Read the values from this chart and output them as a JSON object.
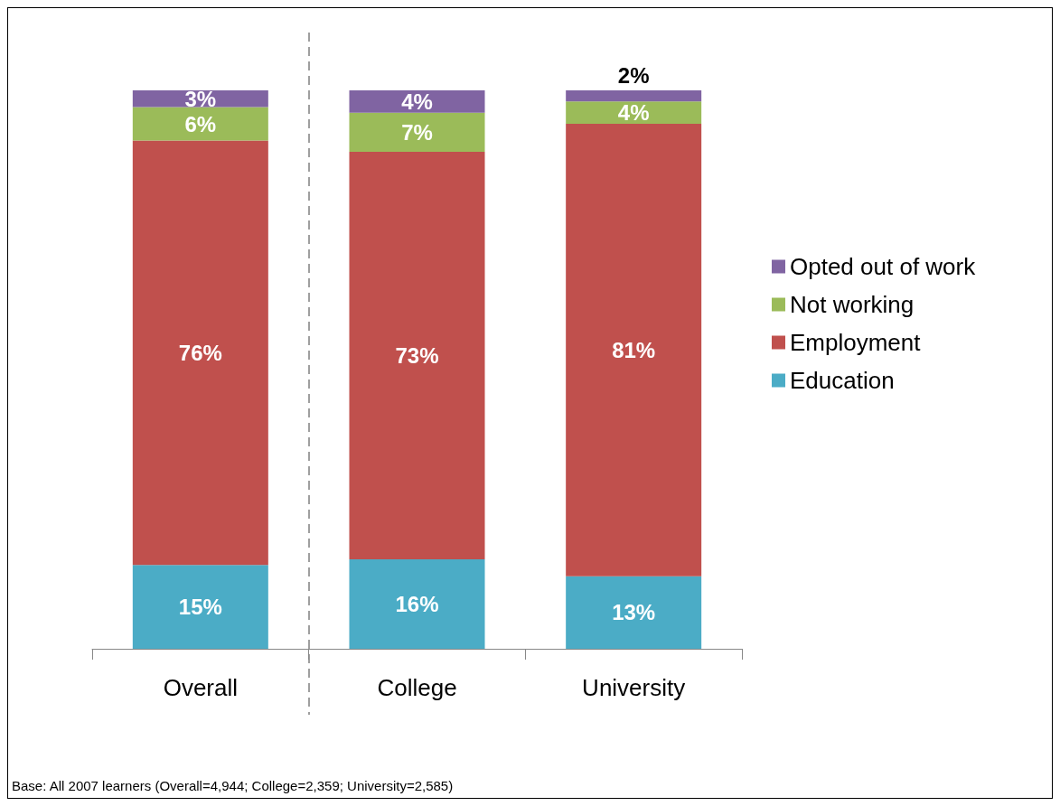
{
  "chart_data": {
    "type": "bar",
    "stacked": true,
    "categories": [
      "Overall",
      "College",
      "University"
    ],
    "series": [
      {
        "name": "Education",
        "color": "#4bacc6",
        "values": [
          15,
          16,
          13
        ],
        "value_labels": [
          "15%",
          "16%",
          "13%"
        ]
      },
      {
        "name": "Employment",
        "color": "#c0504d",
        "values": [
          76,
          73,
          81
        ],
        "value_labels": [
          "76%",
          "73%",
          "81%"
        ]
      },
      {
        "name": "Not working",
        "color": "#9bbb59",
        "values": [
          6,
          7,
          4
        ],
        "value_labels": [
          "6%",
          "7%",
          "4%"
        ]
      },
      {
        "name": "Opted out of work",
        "color": "#8064a2",
        "values": [
          3,
          4,
          2
        ],
        "value_labels": [
          "3%",
          "4%",
          "2%"
        ]
      }
    ],
    "tick_labels": "x",
    "legend": "right",
    "annotations": [
      "Base: All 2007 learners (Overall=4,944; College=2,359; University=2,585)"
    ]
  }
}
